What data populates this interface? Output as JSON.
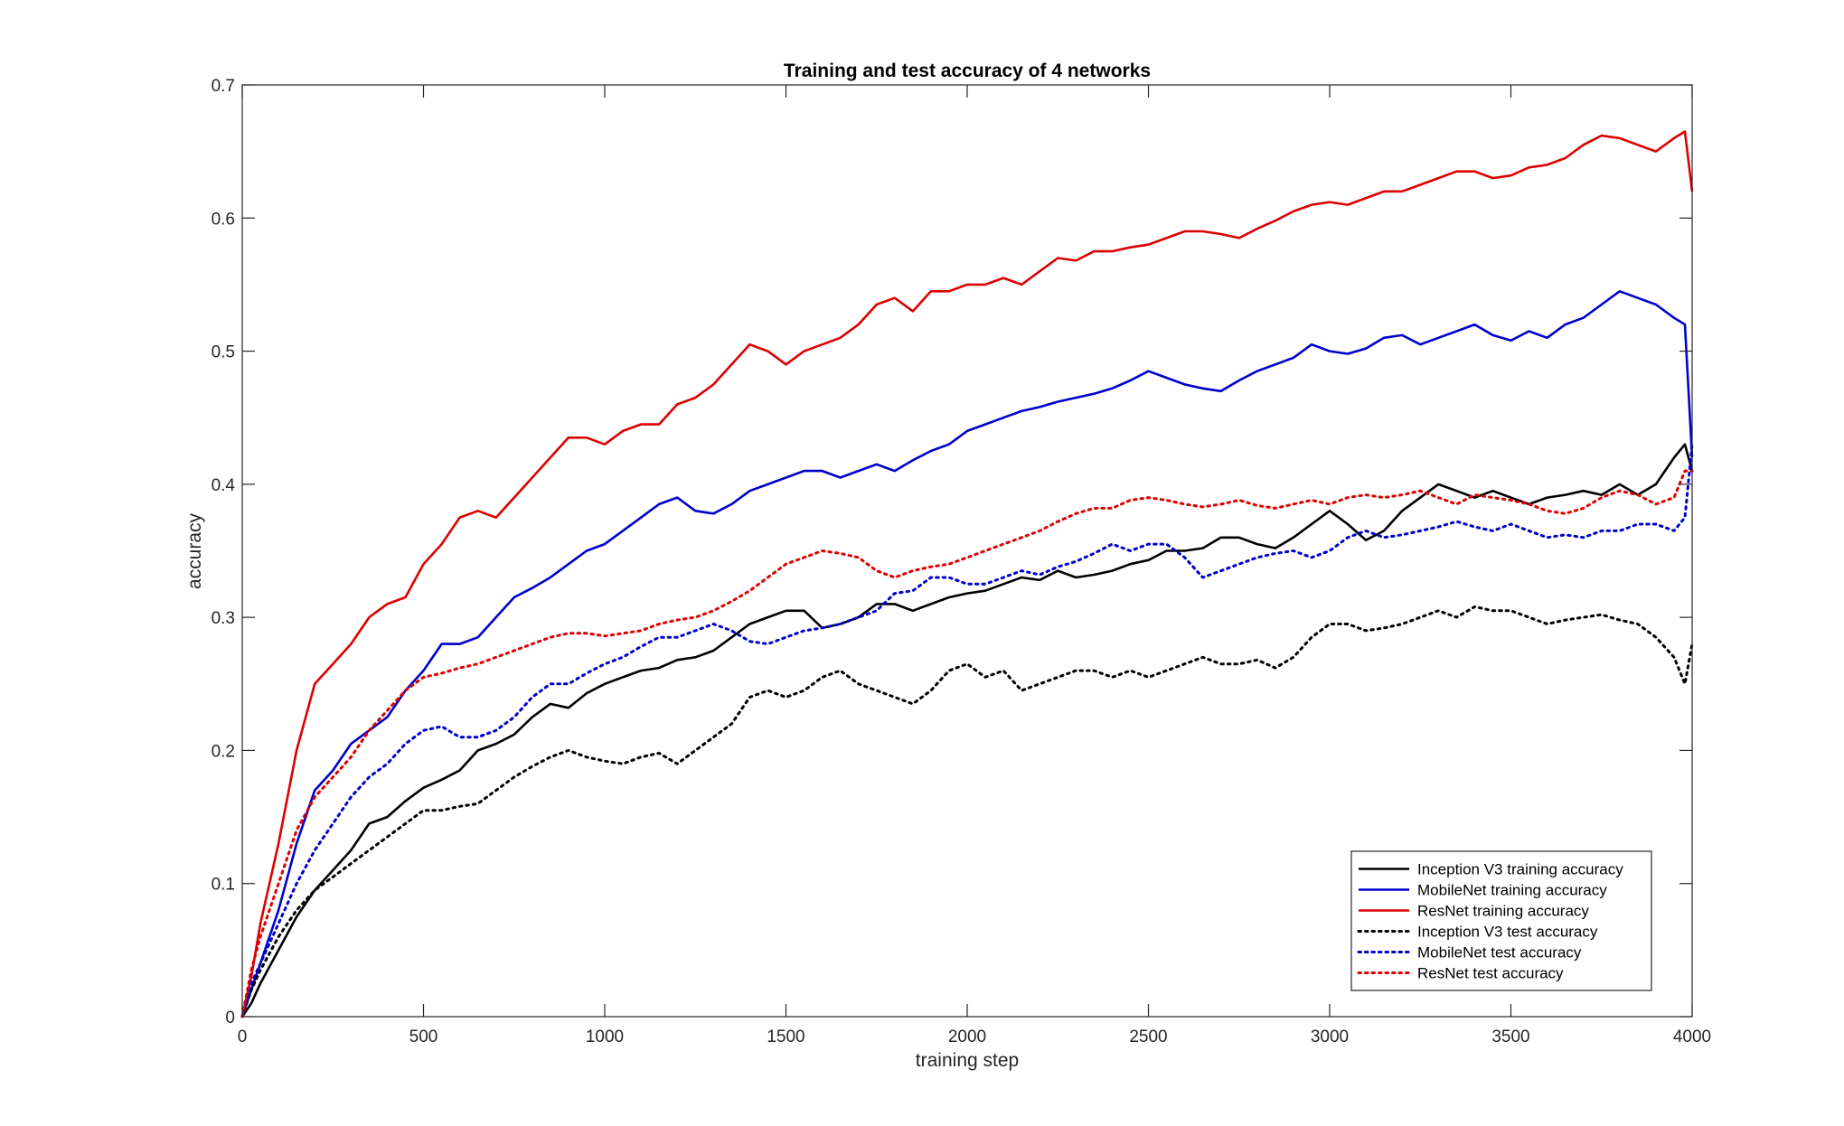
{
  "chart_data": {
    "type": "line",
    "title": "Training and test accuracy of 4 networks",
    "xlabel": "training step",
    "ylabel": "accuracy",
    "xlim": [
      0,
      4000
    ],
    "ylim": [
      0,
      0.7
    ],
    "xticks": [
      0,
      500,
      1000,
      1500,
      2000,
      2500,
      3000,
      3500,
      4000
    ],
    "yticks": [
      0,
      0.1,
      0.2,
      0.3,
      0.4,
      0.5,
      0.6,
      0.7
    ],
    "grid": false,
    "legend_position": "bottom-right",
    "series": [
      {
        "name": "Inception V3 training accuracy",
        "color": "#000000",
        "style": "solid",
        "x": [
          0,
          25,
          50,
          100,
          150,
          200,
          250,
          300,
          350,
          400,
          450,
          500,
          550,
          600,
          650,
          700,
          750,
          800,
          850,
          900,
          950,
          1000,
          1050,
          1100,
          1150,
          1200,
          1250,
          1300,
          1350,
          1400,
          1450,
          1500,
          1550,
          1600,
          1650,
          1700,
          1750,
          1800,
          1850,
          1900,
          1950,
          2000,
          2050,
          2100,
          2150,
          2200,
          2250,
          2300,
          2350,
          2400,
          2450,
          2500,
          2550,
          2600,
          2650,
          2700,
          2750,
          2800,
          2850,
          2900,
          2950,
          3000,
          3050,
          3100,
          3150,
          3200,
          3250,
          3300,
          3350,
          3400,
          3450,
          3500,
          3550,
          3600,
          3650,
          3700,
          3750,
          3800,
          3850,
          3900,
          3950,
          3980,
          4000
        ],
        "y": [
          0,
          0.01,
          0.025,
          0.05,
          0.075,
          0.095,
          0.11,
          0.125,
          0.145,
          0.15,
          0.162,
          0.172,
          0.178,
          0.185,
          0.2,
          0.205,
          0.212,
          0.225,
          0.235,
          0.232,
          0.243,
          0.25,
          0.255,
          0.26,
          0.262,
          0.268,
          0.27,
          0.275,
          0.285,
          0.295,
          0.3,
          0.305,
          0.305,
          0.292,
          0.295,
          0.3,
          0.31,
          0.31,
          0.305,
          0.31,
          0.315,
          0.318,
          0.32,
          0.325,
          0.33,
          0.328,
          0.335,
          0.33,
          0.332,
          0.335,
          0.34,
          0.343,
          0.35,
          0.35,
          0.352,
          0.36,
          0.36,
          0.355,
          0.352,
          0.36,
          0.37,
          0.38,
          0.37,
          0.358,
          0.365,
          0.38,
          0.39,
          0.4,
          0.395,
          0.39,
          0.395,
          0.39,
          0.385,
          0.39,
          0.392,
          0.395,
          0.392,
          0.4,
          0.392,
          0.4,
          0.42,
          0.43,
          0.41
        ]
      },
      {
        "name": "MobileNet training accuracy",
        "color": "#0000cc",
        "style": "solid",
        "x": [
          0,
          25,
          50,
          100,
          150,
          200,
          250,
          300,
          350,
          400,
          450,
          500,
          550,
          600,
          650,
          700,
          750,
          800,
          850,
          900,
          950,
          1000,
          1050,
          1100,
          1150,
          1200,
          1250,
          1300,
          1350,
          1400,
          1450,
          1500,
          1550,
          1600,
          1650,
          1700,
          1750,
          1800,
          1850,
          1900,
          1950,
          2000,
          2050,
          2100,
          2150,
          2200,
          2250,
          2300,
          2350,
          2400,
          2450,
          2500,
          2550,
          2600,
          2650,
          2700,
          2750,
          2800,
          2850,
          2900,
          2950,
          3000,
          3050,
          3100,
          3150,
          3200,
          3250,
          3300,
          3350,
          3400,
          3450,
          3500,
          3550,
          3600,
          3650,
          3700,
          3750,
          3800,
          3850,
          3900,
          3950,
          3980,
          4000
        ],
        "y": [
          0,
          0.02,
          0.04,
          0.08,
          0.13,
          0.17,
          0.185,
          0.205,
          0.215,
          0.225,
          0.245,
          0.26,
          0.28,
          0.28,
          0.285,
          0.3,
          0.315,
          0.322,
          0.33,
          0.34,
          0.35,
          0.355,
          0.365,
          0.375,
          0.385,
          0.39,
          0.38,
          0.378,
          0.385,
          0.395,
          0.4,
          0.405,
          0.41,
          0.41,
          0.405,
          0.41,
          0.415,
          0.41,
          0.418,
          0.425,
          0.43,
          0.44,
          0.445,
          0.45,
          0.455,
          0.458,
          0.462,
          0.465,
          0.468,
          0.472,
          0.478,
          0.485,
          0.48,
          0.475,
          0.472,
          0.47,
          0.478,
          0.485,
          0.49,
          0.495,
          0.505,
          0.5,
          0.498,
          0.502,
          0.51,
          0.512,
          0.505,
          0.51,
          0.515,
          0.52,
          0.512,
          0.508,
          0.515,
          0.51,
          0.52,
          0.525,
          0.535,
          0.545,
          0.54,
          0.535,
          0.525,
          0.52,
          0.42
        ]
      },
      {
        "name": "ResNet training accuracy",
        "color": "#dd0000",
        "style": "solid",
        "x": [
          0,
          25,
          50,
          100,
          150,
          200,
          250,
          300,
          350,
          400,
          450,
          500,
          550,
          600,
          650,
          700,
          750,
          800,
          850,
          900,
          950,
          1000,
          1050,
          1100,
          1150,
          1200,
          1250,
          1300,
          1350,
          1400,
          1450,
          1500,
          1550,
          1600,
          1650,
          1700,
          1750,
          1800,
          1850,
          1900,
          1950,
          2000,
          2050,
          2100,
          2150,
          2200,
          2250,
          2300,
          2350,
          2400,
          2450,
          2500,
          2550,
          2600,
          2650,
          2700,
          2750,
          2800,
          2850,
          2900,
          2950,
          3000,
          3050,
          3100,
          3150,
          3200,
          3250,
          3300,
          3350,
          3400,
          3450,
          3500,
          3550,
          3600,
          3650,
          3700,
          3750,
          3800,
          3850,
          3900,
          3950,
          3980,
          4000
        ],
        "y": [
          0,
          0.03,
          0.07,
          0.13,
          0.2,
          0.25,
          0.265,
          0.28,
          0.3,
          0.31,
          0.315,
          0.34,
          0.355,
          0.375,
          0.38,
          0.375,
          0.39,
          0.405,
          0.42,
          0.435,
          0.435,
          0.43,
          0.44,
          0.445,
          0.445,
          0.46,
          0.465,
          0.475,
          0.49,
          0.505,
          0.5,
          0.49,
          0.5,
          0.505,
          0.51,
          0.52,
          0.535,
          0.54,
          0.53,
          0.545,
          0.545,
          0.55,
          0.55,
          0.555,
          0.55,
          0.56,
          0.57,
          0.568,
          0.575,
          0.575,
          0.578,
          0.58,
          0.585,
          0.59,
          0.59,
          0.588,
          0.585,
          0.592,
          0.598,
          0.605,
          0.61,
          0.612,
          0.61,
          0.615,
          0.62,
          0.62,
          0.625,
          0.63,
          0.635,
          0.635,
          0.63,
          0.632,
          0.638,
          0.64,
          0.645,
          0.655,
          0.662,
          0.66,
          0.655,
          0.65,
          0.66,
          0.665,
          0.62
        ]
      },
      {
        "name": "Inception V3 test accuracy",
        "color": "#000000",
        "style": "dotted",
        "x": [
          0,
          25,
          50,
          100,
          150,
          200,
          250,
          300,
          350,
          400,
          450,
          500,
          550,
          600,
          650,
          700,
          750,
          800,
          850,
          900,
          950,
          1000,
          1050,
          1100,
          1150,
          1200,
          1250,
          1300,
          1350,
          1400,
          1450,
          1500,
          1550,
          1600,
          1650,
          1700,
          1750,
          1800,
          1850,
          1900,
          1950,
          2000,
          2050,
          2100,
          2150,
          2200,
          2250,
          2300,
          2350,
          2400,
          2450,
          2500,
          2550,
          2600,
          2650,
          2700,
          2750,
          2800,
          2850,
          2900,
          2950,
          3000,
          3050,
          3100,
          3150,
          3200,
          3250,
          3300,
          3350,
          3400,
          3450,
          3500,
          3550,
          3600,
          3650,
          3700,
          3750,
          3800,
          3850,
          3900,
          3950,
          3980,
          4000
        ],
        "y": [
          0,
          0.02,
          0.035,
          0.06,
          0.08,
          0.095,
          0.105,
          0.115,
          0.125,
          0.135,
          0.145,
          0.155,
          0.155,
          0.158,
          0.16,
          0.17,
          0.18,
          0.188,
          0.195,
          0.2,
          0.195,
          0.192,
          0.19,
          0.195,
          0.198,
          0.19,
          0.2,
          0.21,
          0.22,
          0.24,
          0.245,
          0.24,
          0.245,
          0.255,
          0.26,
          0.25,
          0.245,
          0.24,
          0.235,
          0.245,
          0.26,
          0.265,
          0.255,
          0.26,
          0.245,
          0.25,
          0.255,
          0.26,
          0.26,
          0.255,
          0.26,
          0.255,
          0.26,
          0.265,
          0.27,
          0.265,
          0.265,
          0.268,
          0.262,
          0.27,
          0.285,
          0.295,
          0.295,
          0.29,
          0.292,
          0.295,
          0.3,
          0.305,
          0.3,
          0.308,
          0.305,
          0.305,
          0.3,
          0.295,
          0.298,
          0.3,
          0.302,
          0.298,
          0.295,
          0.285,
          0.27,
          0.25,
          0.28
        ]
      },
      {
        "name": "MobileNet test accuracy",
        "color": "#0000cc",
        "style": "dotted",
        "x": [
          0,
          25,
          50,
          100,
          150,
          200,
          250,
          300,
          350,
          400,
          450,
          500,
          550,
          600,
          650,
          700,
          750,
          800,
          850,
          900,
          950,
          1000,
          1050,
          1100,
          1150,
          1200,
          1250,
          1300,
          1350,
          1400,
          1450,
          1500,
          1550,
          1600,
          1650,
          1700,
          1750,
          1800,
          1850,
          1900,
          1950,
          2000,
          2050,
          2100,
          2150,
          2200,
          2250,
          2300,
          2350,
          2400,
          2450,
          2500,
          2550,
          2600,
          2650,
          2700,
          2750,
          2800,
          2850,
          2900,
          2950,
          3000,
          3050,
          3100,
          3150,
          3200,
          3250,
          3300,
          3350,
          3400,
          3450,
          3500,
          3550,
          3600,
          3650,
          3700,
          3750,
          3800,
          3850,
          3900,
          3950,
          3980,
          4000
        ],
        "y": [
          0,
          0.025,
          0.04,
          0.07,
          0.1,
          0.125,
          0.145,
          0.165,
          0.18,
          0.19,
          0.205,
          0.215,
          0.218,
          0.21,
          0.21,
          0.215,
          0.225,
          0.24,
          0.25,
          0.25,
          0.258,
          0.265,
          0.27,
          0.278,
          0.285,
          0.285,
          0.29,
          0.295,
          0.29,
          0.282,
          0.28,
          0.285,
          0.29,
          0.292,
          0.295,
          0.3,
          0.305,
          0.318,
          0.32,
          0.33,
          0.33,
          0.325,
          0.325,
          0.33,
          0.335,
          0.332,
          0.338,
          0.342,
          0.348,
          0.355,
          0.35,
          0.355,
          0.355,
          0.345,
          0.33,
          0.335,
          0.34,
          0.345,
          0.348,
          0.35,
          0.345,
          0.35,
          0.36,
          0.365,
          0.36,
          0.362,
          0.365,
          0.368,
          0.372,
          0.368,
          0.365,
          0.37,
          0.365,
          0.36,
          0.362,
          0.36,
          0.365,
          0.365,
          0.37,
          0.37,
          0.365,
          0.375,
          0.43
        ]
      },
      {
        "name": "ResNet test accuracy",
        "color": "#dd0000",
        "style": "dotted",
        "x": [
          0,
          25,
          50,
          100,
          150,
          200,
          250,
          300,
          350,
          400,
          450,
          500,
          550,
          600,
          650,
          700,
          750,
          800,
          850,
          900,
          950,
          1000,
          1050,
          1100,
          1150,
          1200,
          1250,
          1300,
          1350,
          1400,
          1450,
          1500,
          1550,
          1600,
          1650,
          1700,
          1750,
          1800,
          1850,
          1900,
          1950,
          2000,
          2050,
          2100,
          2150,
          2200,
          2250,
          2300,
          2350,
          2400,
          2450,
          2500,
          2550,
          2600,
          2650,
          2700,
          2750,
          2800,
          2850,
          2900,
          2950,
          3000,
          3050,
          3100,
          3150,
          3200,
          3250,
          3300,
          3350,
          3400,
          3450,
          3500,
          3550,
          3600,
          3650,
          3700,
          3750,
          3800,
          3850,
          3900,
          3950,
          3980,
          4000
        ],
        "y": [
          0,
          0.035,
          0.06,
          0.1,
          0.14,
          0.165,
          0.18,
          0.195,
          0.215,
          0.23,
          0.245,
          0.255,
          0.258,
          0.262,
          0.265,
          0.27,
          0.275,
          0.28,
          0.285,
          0.288,
          0.288,
          0.286,
          0.288,
          0.29,
          0.295,
          0.298,
          0.3,
          0.305,
          0.312,
          0.32,
          0.33,
          0.34,
          0.345,
          0.35,
          0.348,
          0.345,
          0.335,
          0.33,
          0.335,
          0.338,
          0.34,
          0.345,
          0.35,
          0.355,
          0.36,
          0.365,
          0.372,
          0.378,
          0.382,
          0.382,
          0.388,
          0.39,
          0.388,
          0.385,
          0.383,
          0.385,
          0.388,
          0.384,
          0.382,
          0.385,
          0.388,
          0.385,
          0.39,
          0.392,
          0.39,
          0.392,
          0.395,
          0.39,
          0.385,
          0.392,
          0.39,
          0.388,
          0.385,
          0.38,
          0.378,
          0.382,
          0.39,
          0.395,
          0.392,
          0.385,
          0.39,
          0.41,
          0.41
        ]
      }
    ]
  }
}
